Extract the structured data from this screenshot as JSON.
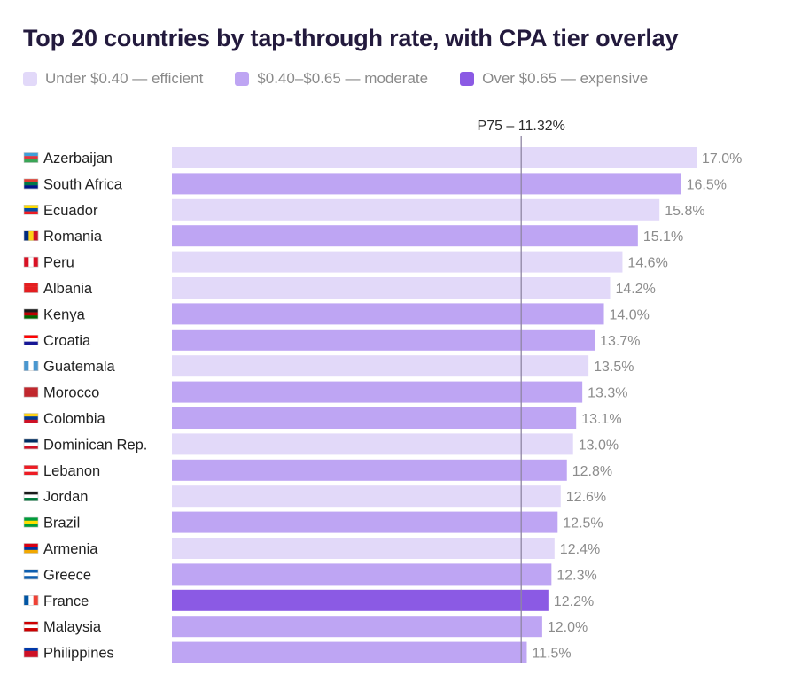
{
  "chart_data": {
    "type": "bar",
    "orientation": "horizontal",
    "title": "Top 20 countries by tap-through rate, with CPA tier overlay",
    "value_suffix": "%",
    "xlim": [
      0,
      17.0
    ],
    "grid": false,
    "legend_placement": "top-left",
    "tiers": [
      {
        "key": "efficient",
        "label": "Under $0.40 — efficient",
        "color": "#e2d9f9"
      },
      {
        "key": "moderate",
        "label": "$0.40–$0.65 — moderate",
        "color": "#bea5f3"
      },
      {
        "key": "expensive",
        "label": "Over $0.65 — expensive",
        "color": "#8b5ae4"
      }
    ],
    "reference_line": {
      "label": "P75 – 11.32%",
      "value": 11.32,
      "color": "#8f86a3"
    },
    "bars": [
      {
        "country": "Azerbaijan",
        "value": 17.0,
        "value_label": "17.0%",
        "tier": "efficient",
        "flag": [
          "#3f9fd8",
          "#e0353f",
          "#3aa556"
        ]
      },
      {
        "country": "South Africa",
        "value": 16.5,
        "value_label": "16.5%",
        "tier": "moderate",
        "flag": [
          "#e03c31",
          "#007749",
          "#001489"
        ]
      },
      {
        "country": "Ecuador",
        "value": 15.8,
        "value_label": "15.8%",
        "tier": "efficient",
        "flag": [
          "#ffdd00",
          "#034ea2",
          "#ed1c24"
        ]
      },
      {
        "country": "Romania",
        "value": 15.1,
        "value_label": "15.1%",
        "tier": "moderate",
        "flag": [
          "#002b7f",
          "#fcd116",
          "#ce1126"
        ],
        "flag_dir": "v"
      },
      {
        "country": "Peru",
        "value": 14.6,
        "value_label": "14.6%",
        "tier": "efficient",
        "flag": [
          "#d91023",
          "#ffffff",
          "#d91023"
        ],
        "flag_dir": "v"
      },
      {
        "country": "Albania",
        "value": 14.2,
        "value_label": "14.2%",
        "tier": "efficient",
        "flag": [
          "#e41e20",
          "#e41e20",
          "#e41e20"
        ]
      },
      {
        "country": "Kenya",
        "value": 14.0,
        "value_label": "14.0%",
        "tier": "moderate",
        "flag": [
          "#1a1a1a",
          "#bb0000",
          "#006600"
        ]
      },
      {
        "country": "Croatia",
        "value": 13.7,
        "value_label": "13.7%",
        "tier": "moderate",
        "flag": [
          "#ff0000",
          "#ffffff",
          "#171796"
        ]
      },
      {
        "country": "Guatemala",
        "value": 13.5,
        "value_label": "13.5%",
        "tier": "efficient",
        "flag": [
          "#4997d0",
          "#ffffff",
          "#4997d0"
        ],
        "flag_dir": "v"
      },
      {
        "country": "Morocco",
        "value": 13.3,
        "value_label": "13.3%",
        "tier": "moderate",
        "flag": [
          "#c1272d",
          "#c1272d",
          "#c1272d"
        ]
      },
      {
        "country": "Colombia",
        "value": 13.1,
        "value_label": "13.1%",
        "tier": "moderate",
        "flag": [
          "#fcd116",
          "#003893",
          "#ce1126"
        ]
      },
      {
        "country": "Dominican Rep.",
        "value": 13.0,
        "value_label": "13.0%",
        "tier": "efficient",
        "flag": [
          "#002d62",
          "#ffffff",
          "#ce1126"
        ]
      },
      {
        "country": "Lebanon",
        "value": 12.8,
        "value_label": "12.8%",
        "tier": "moderate",
        "flag": [
          "#ed1c24",
          "#ffffff",
          "#ed1c24"
        ]
      },
      {
        "country": "Jordan",
        "value": 12.6,
        "value_label": "12.6%",
        "tier": "efficient",
        "flag": [
          "#1a1a1a",
          "#ffffff",
          "#007a3d"
        ]
      },
      {
        "country": "Brazil",
        "value": 12.5,
        "value_label": "12.5%",
        "tier": "moderate",
        "flag": [
          "#009c3b",
          "#ffdf00",
          "#009c3b"
        ]
      },
      {
        "country": "Armenia",
        "value": 12.4,
        "value_label": "12.4%",
        "tier": "efficient",
        "flag": [
          "#d90012",
          "#0033a0",
          "#f2a800"
        ]
      },
      {
        "country": "Greece",
        "value": 12.3,
        "value_label": "12.3%",
        "tier": "moderate",
        "flag": [
          "#0d5eaf",
          "#ffffff",
          "#0d5eaf"
        ]
      },
      {
        "country": "France",
        "value": 12.2,
        "value_label": "12.2%",
        "tier": "expensive",
        "flag": [
          "#0055a4",
          "#ffffff",
          "#ef4135"
        ],
        "flag_dir": "v"
      },
      {
        "country": "Malaysia",
        "value": 12.0,
        "value_label": "12.0%",
        "tier": "moderate",
        "flag": [
          "#cc0001",
          "#ffffff",
          "#cc0001"
        ]
      },
      {
        "country": "Philippines",
        "value": 11.5,
        "value_label": "11.5%",
        "tier": "moderate",
        "flag": [
          "#0038a8",
          "#ce1126",
          "#ce1126"
        ]
      }
    ]
  }
}
